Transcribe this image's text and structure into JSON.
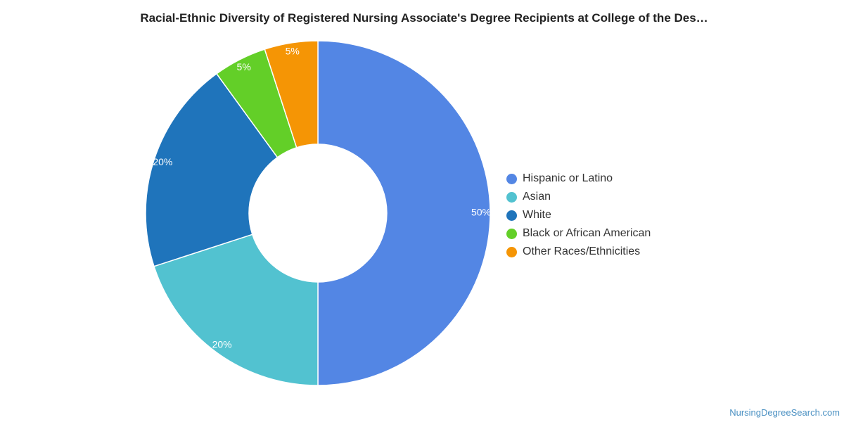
{
  "chart_data": {
    "type": "pie",
    "title": "Racial-Ethnic Diversity of Registered Nursing Associate's Degree Recipients at College of the Des…",
    "legend_position": "right",
    "donut": true,
    "slices": [
      {
        "name": "Hispanic or Latino",
        "value": 50,
        "label": "50%",
        "color": "#5386e4"
      },
      {
        "name": "Asian",
        "value": 20,
        "label": "20%",
        "color": "#52c2d0"
      },
      {
        "name": "White",
        "value": 20,
        "label": "20%",
        "color": "#1f74bb"
      },
      {
        "name": "Black or African American",
        "value": 5,
        "label": "5%",
        "color": "#63cf28"
      },
      {
        "name": "Other Races/Ethnicities",
        "value": 5,
        "label": "5%",
        "color": "#f59505"
      }
    ]
  },
  "watermark": "NursingDegreeSearch.com"
}
